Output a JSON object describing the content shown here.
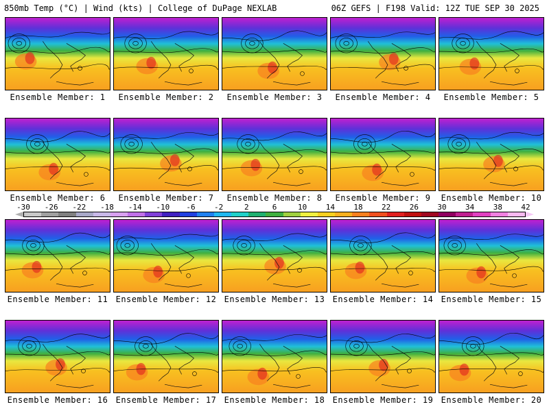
{
  "header": {
    "left_title": "850mb Temp (°C) | Wind (kts) | College of DuPage NEXLAB",
    "right_title": "06Z GEFS | F198 Valid: 12Z TUE SEP 30 2025"
  },
  "panels": [
    {
      "label": "Ensemble Member: 1"
    },
    {
      "label": "Ensemble Member: 2"
    },
    {
      "label": "Ensemble Member: 3"
    },
    {
      "label": "Ensemble Member: 4"
    },
    {
      "label": "Ensemble Member: 5"
    },
    {
      "label": "Ensemble Member: 6"
    },
    {
      "label": "Ensemble Member: 7"
    },
    {
      "label": "Ensemble Member: 8"
    },
    {
      "label": "Ensemble Member: 9"
    },
    {
      "label": "Ensemble Member: 10"
    },
    {
      "label": "Ensemble Member: 11"
    },
    {
      "label": "Ensemble Member: 12"
    },
    {
      "label": "Ensemble Member: 13"
    },
    {
      "label": "Ensemble Member: 14"
    },
    {
      "label": "Ensemble Member: 15"
    },
    {
      "label": "Ensemble Member: 16"
    },
    {
      "label": "Ensemble Member: 17"
    },
    {
      "label": "Ensemble Member: 18"
    },
    {
      "label": "Ensemble Member: 19"
    },
    {
      "label": "Ensemble Member: 20"
    }
  ],
  "colorbar": {
    "ticks": [
      "-30",
      "-26",
      "-22",
      "-18",
      "-14",
      "-10",
      "-6",
      "-2",
      "2",
      "6",
      "10",
      "14",
      "18",
      "22",
      "26",
      "30",
      "34",
      "38",
      "42"
    ],
    "colors": [
      "#c8c8c8",
      "#a0a0a0",
      "#808080",
      "#a8a8c8",
      "#c8b8e8",
      "#d8a0f0",
      "#c070e8",
      "#8040d8",
      "#4020c0",
      "#2040e0",
      "#2080f0",
      "#20b8f0",
      "#20d0c8",
      "#20b070",
      "#40b040",
      "#a0d040",
      "#f0f040",
      "#f8d020",
      "#f8b020",
      "#f88020",
      "#f05020",
      "#e02020",
      "#c01010",
      "#a00820",
      "#900060",
      "#c02090",
      "#e040c0",
      "#f080e0",
      "#f8b8f0"
    ]
  },
  "colors": {
    "polar_purple": "#b020d0",
    "cold_blue": "#2050e0",
    "mild_green": "#40b040",
    "warm_orange": "#f8b020",
    "hot_red": "#e02020"
  }
}
